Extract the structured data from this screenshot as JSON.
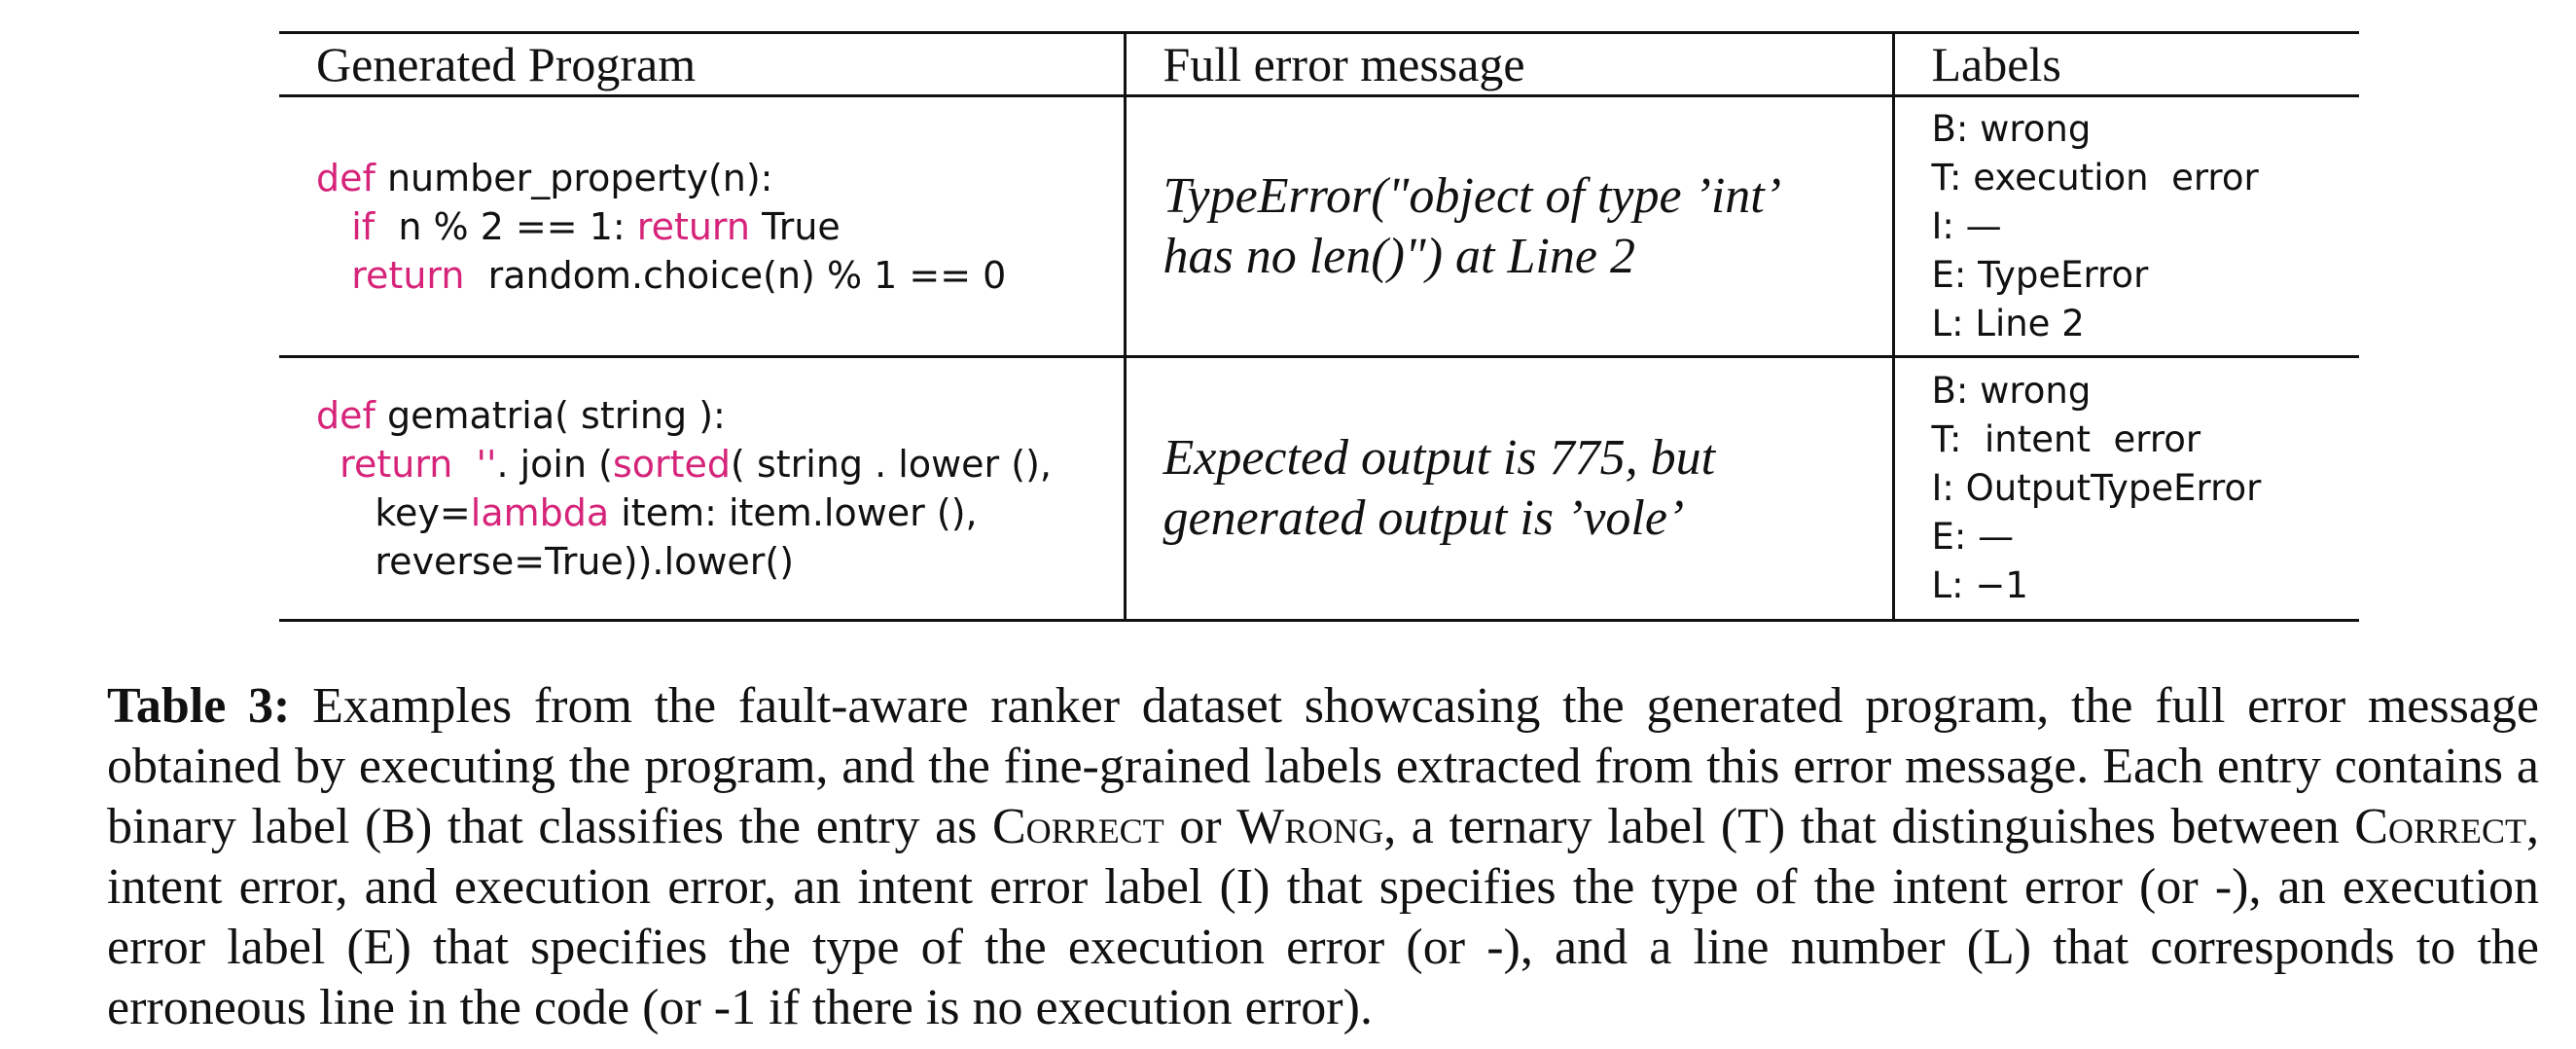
{
  "table": {
    "headers": [
      "Generated Program",
      "Full error message",
      "Labels"
    ],
    "rows": [
      {
        "program": [
          [
            [
              "kw",
              "def"
            ],
            [
              "t",
              " number_property(n):"
            ]
          ],
          [
            [
              "t",
              "   "
            ],
            [
              "kw",
              "if"
            ],
            [
              "t",
              "  n % 2 == 1: "
            ],
            [
              "kw",
              "return"
            ],
            [
              "t",
              " True"
            ]
          ],
          [
            [
              "t",
              "   "
            ],
            [
              "kw",
              "return"
            ],
            [
              "t",
              "  random.choice(n) % 1 == 0"
            ]
          ]
        ],
        "error_message": "TypeError(\"object of type ’int’ has no len()\") at Line 2",
        "labels": [
          "B: wrong",
          "T: execution  error",
          "I: —",
          "E: TypeError",
          "L: Line 2"
        ]
      },
      {
        "program": [
          [
            [
              "kw",
              "def"
            ],
            [
              "t",
              " gematria( string ):"
            ]
          ],
          [
            [
              "t",
              "  "
            ],
            [
              "kw",
              "return"
            ],
            [
              "t",
              "  "
            ],
            [
              "kw",
              "''"
            ],
            [
              "t",
              ". join ("
            ],
            [
              "kw",
              "sorted"
            ],
            [
              "t",
              "( string . lower (),"
            ]
          ],
          [
            [
              "t",
              "     key="
            ],
            [
              "kw",
              "lambda"
            ],
            [
              "t",
              " item: item.lower (),"
            ]
          ],
          [
            [
              "t",
              "     reverse=True)).lower()"
            ]
          ]
        ],
        "error_message": "Expected output is 775, but generated output is ’vole’",
        "labels": [
          "B: wrong",
          "T:  intent  error",
          "I: OutputTypeError",
          "E: —",
          "L: −1"
        ]
      }
    ]
  },
  "caption": {
    "label": "Table 3:",
    "segments": [
      [
        "t",
        " Examples from the fault-aware ranker dataset showcasing the generated program, the full error message obtained by executing the program, and the fine-grained labels extracted from this error message. Each entry contains a binary label (B) that classifies the entry as "
      ],
      [
        "sc",
        "Correct"
      ],
      [
        "t",
        " or "
      ],
      [
        "sc",
        "Wrong"
      ],
      [
        "t",
        ", a ternary label (T) that distinguishes between "
      ],
      [
        "sc",
        "Correct"
      ],
      [
        "t",
        ", intent error, and execution error, an intent error label (I) that specifies the type of the intent error (or -), an execution error label (E) that specifies the type of the execution error (or -), and a line number (L) that corresponds to the erroneous line in the code (or -1 if there is no execution error)."
      ]
    ]
  },
  "colors": {
    "keyword": "#d6247a",
    "text": "#111111",
    "rule": "#111111"
  }
}
